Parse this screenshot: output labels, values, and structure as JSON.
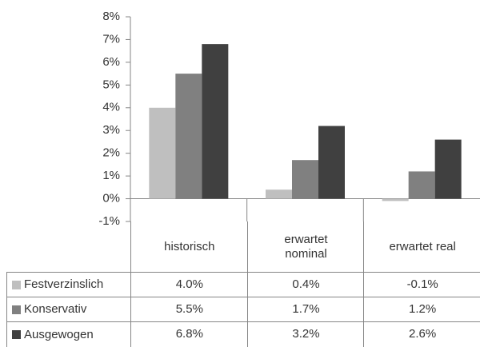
{
  "chart_data": {
    "type": "bar",
    "categories": [
      "historisch",
      "erwartet nominal",
      "erwartet real"
    ],
    "series": [
      {
        "name": "Festverzinslich",
        "color": "#bfbfbf",
        "values": [
          4.0,
          0.4,
          -0.1
        ],
        "value_labels": [
          "4.0%",
          "0.4%",
          "-0.1%"
        ]
      },
      {
        "name": "Konservativ",
        "color": "#808080",
        "values": [
          5.5,
          1.7,
          1.2
        ],
        "value_labels": [
          "5.5%",
          "1.7%",
          "1.2%"
        ]
      },
      {
        "name": "Ausgewogen",
        "color": "#404040",
        "values": [
          6.8,
          3.2,
          2.6
        ],
        "value_labels": [
          "6.8%",
          "3.2%",
          "2.6%"
        ]
      }
    ],
    "ylim": [
      -1,
      8
    ],
    "yticks": [
      {
        "value": -1,
        "label": "-1%"
      },
      {
        "value": 0,
        "label": "0%"
      },
      {
        "value": 1,
        "label": "1%"
      },
      {
        "value": 2,
        "label": "2%"
      },
      {
        "value": 3,
        "label": "3%"
      },
      {
        "value": 4,
        "label": "4%"
      },
      {
        "value": 5,
        "label": "5%"
      },
      {
        "value": 6,
        "label": "6%"
      },
      {
        "value": 7,
        "label": "7%"
      },
      {
        "value": 8,
        "label": "8%"
      }
    ],
    "grid": false,
    "data_table": true
  }
}
